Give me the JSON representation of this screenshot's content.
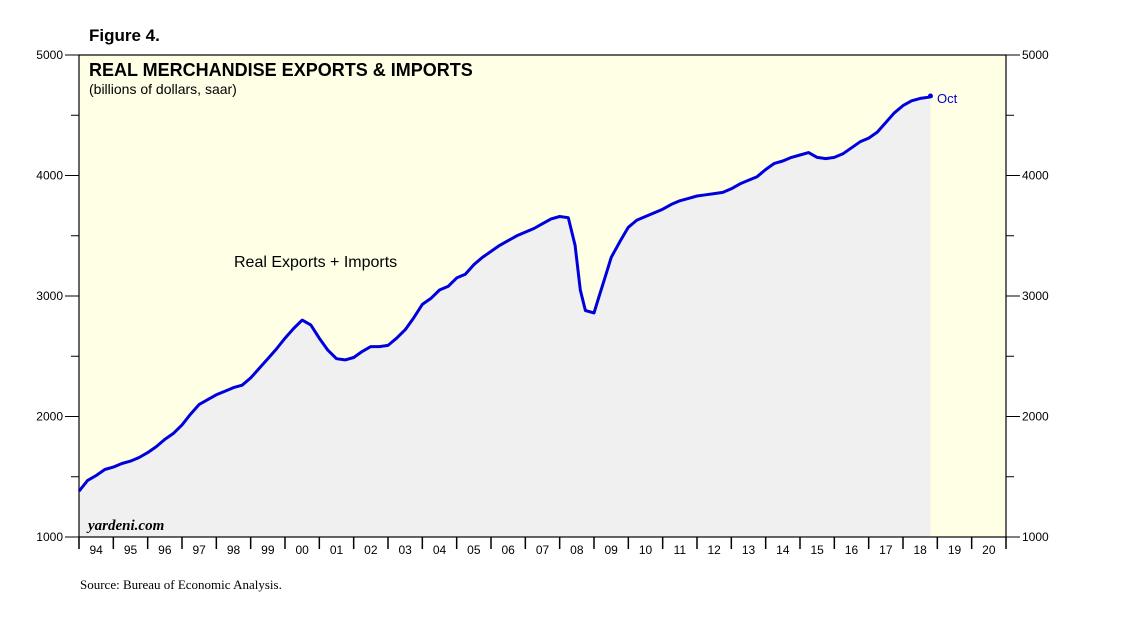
{
  "figure_label": "Figure 4.",
  "source": "Source: Bureau of Economic Analysis.",
  "colors": {
    "plot_background": "#ffffe6",
    "shaded_area": "#f0f0f0",
    "line": "#0000dd",
    "axis": "#000000"
  },
  "chart_data": {
    "type": "line",
    "title": "REAL MERCHANDISE EXPORTS & IMPORTS",
    "subtitle": "(billions of dollars, saar)",
    "brand": "yardeni.com",
    "series_label": "Real Exports + Imports",
    "end_label": "Oct",
    "ylim": [
      1000,
      5000
    ],
    "y_ticks": [
      1000,
      2000,
      3000,
      4000,
      5000
    ],
    "y_tick_labels": [
      "1000",
      "2000",
      "3000",
      "4000",
      "5000"
    ],
    "xlim": [
      1994,
      2021
    ],
    "x_tick_labels": [
      "94",
      "95",
      "96",
      "97",
      "98",
      "99",
      "00",
      "01",
      "02",
      "03",
      "04",
      "05",
      "06",
      "07",
      "08",
      "09",
      "10",
      "11",
      "12",
      "13",
      "14",
      "15",
      "16",
      "17",
      "18",
      "19",
      "20"
    ],
    "series": [
      {
        "name": "Real Exports + Imports",
        "x": [
          1994.0,
          1994.25,
          1994.5,
          1994.75,
          1995.0,
          1995.25,
          1995.5,
          1995.75,
          1996.0,
          1996.25,
          1996.5,
          1996.75,
          1997.0,
          1997.25,
          1997.5,
          1997.75,
          1998.0,
          1998.25,
          1998.5,
          1998.75,
          1999.0,
          1999.25,
          1999.5,
          1999.75,
          2000.0,
          2000.25,
          2000.5,
          2000.75,
          2001.0,
          2001.25,
          2001.5,
          2001.75,
          2002.0,
          2002.25,
          2002.5,
          2002.75,
          2003.0,
          2003.25,
          2003.5,
          2003.75,
          2004.0,
          2004.25,
          2004.5,
          2004.75,
          2005.0,
          2005.25,
          2005.5,
          2005.75,
          2006.0,
          2006.25,
          2006.5,
          2006.75,
          2007.0,
          2007.25,
          2007.5,
          2007.75,
          2008.0,
          2008.25,
          2008.45,
          2008.6,
          2008.75,
          2009.0,
          2009.15,
          2009.35,
          2009.5,
          2009.75,
          2010.0,
          2010.25,
          2010.5,
          2010.75,
          2011.0,
          2011.25,
          2011.5,
          2011.75,
          2012.0,
          2012.25,
          2012.5,
          2012.75,
          2013.0,
          2013.25,
          2013.5,
          2013.75,
          2014.0,
          2014.25,
          2014.5,
          2014.75,
          2015.0,
          2015.25,
          2015.5,
          2015.75,
          2016.0,
          2016.25,
          2016.5,
          2016.75,
          2017.0,
          2017.25,
          2017.5,
          2017.75,
          2018.0,
          2018.25,
          2018.5,
          2018.75,
          2018.8
        ],
        "values": [
          1380,
          1470,
          1510,
          1560,
          1580,
          1610,
          1630,
          1660,
          1700,
          1750,
          1810,
          1860,
          1930,
          2020,
          2100,
          2140,
          2180,
          2210,
          2240,
          2260,
          2320,
          2400,
          2480,
          2560,
          2650,
          2730,
          2800,
          2760,
          2650,
          2550,
          2480,
          2470,
          2490,
          2540,
          2580,
          2580,
          2590,
          2650,
          2720,
          2820,
          2930,
          2980,
          3050,
          3080,
          3150,
          3180,
          3260,
          3320,
          3370,
          3420,
          3460,
          3500,
          3530,
          3560,
          3600,
          3640,
          3660,
          3650,
          3420,
          3050,
          2880,
          2860,
          3000,
          3180,
          3320,
          3450,
          3570,
          3630,
          3660,
          3690,
          3720,
          3760,
          3790,
          3810,
          3830,
          3840,
          3850,
          3860,
          3890,
          3930,
          3960,
          3990,
          4050,
          4100,
          4120,
          4150,
          4170,
          4190,
          4150,
          4140,
          4150,
          4180,
          4230,
          4280,
          4310,
          4360,
          4440,
          4520,
          4580,
          4620,
          4640,
          4650,
          4660
        ]
      }
    ]
  }
}
